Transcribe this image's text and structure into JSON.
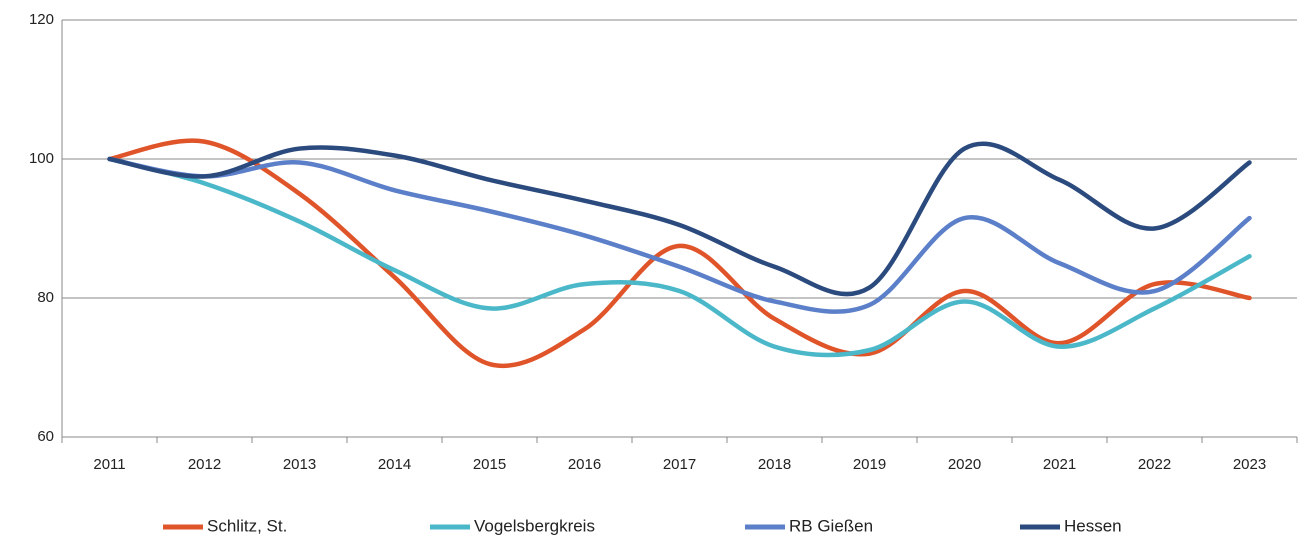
{
  "chart_data": {
    "type": "line",
    "categories": [
      "2011",
      "2012",
      "2013",
      "2014",
      "2015",
      "2016",
      "2017",
      "2018",
      "2019",
      "2020",
      "2021",
      "2022",
      "2023"
    ],
    "series": [
      {
        "name": "Schlitz, St.",
        "color": "#e0542a",
        "values": [
          100,
          102.5,
          95,
          83,
          70.5,
          75.5,
          87.5,
          77,
          72,
          81,
          73.5,
          82,
          80
        ]
      },
      {
        "name": "Vogelsbergkreis",
        "color": "#4bb8c9",
        "values": [
          100,
          96.5,
          91,
          84,
          78.5,
          82,
          81,
          73,
          72.5,
          79.5,
          73,
          78.5,
          86
        ]
      },
      {
        "name": "RB Gießen",
        "color": "#5b7fc8",
        "values": [
          100,
          97.5,
          99.5,
          95.5,
          92.5,
          89,
          84.5,
          79.5,
          79,
          91.5,
          85,
          81,
          91.5
        ]
      },
      {
        "name": "Hessen",
        "color": "#2b4a7e",
        "values": [
          100,
          97.5,
          101.5,
          100.5,
          97,
          94,
          90.5,
          84.5,
          81.5,
          101.5,
          97,
          90,
          99.5
        ]
      }
    ],
    "ylim": [
      60,
      120
    ],
    "yticks": [
      60,
      80,
      100,
      120
    ],
    "grid": true,
    "legend": "bottom"
  }
}
